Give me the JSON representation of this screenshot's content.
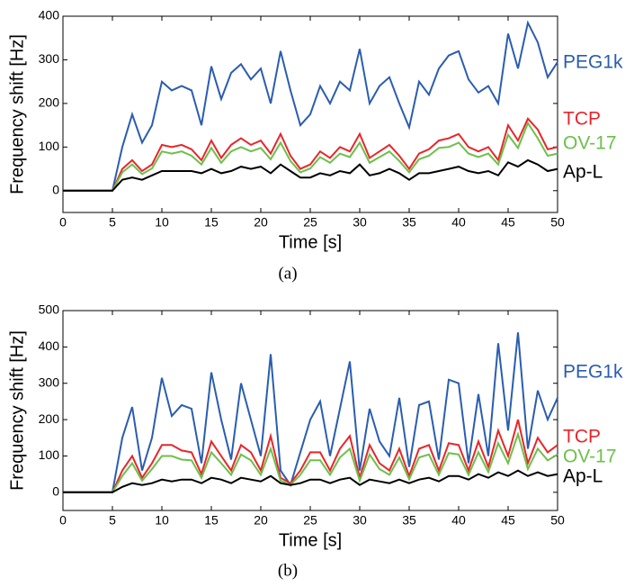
{
  "chart_data": [
    {
      "type": "line",
      "caption": "(a)",
      "xlabel": "Time [s]",
      "ylabel": "Frequency shift [Hz]",
      "x": [
        0,
        1,
        2,
        3,
        4,
        5,
        6,
        7,
        8,
        9,
        10,
        11,
        12,
        13,
        14,
        15,
        16,
        17,
        18,
        19,
        20,
        21,
        22,
        23,
        24,
        25,
        26,
        27,
        28,
        29,
        30,
        31,
        32,
        33,
        34,
        35,
        36,
        37,
        38,
        39,
        40,
        41,
        42,
        43,
        44,
        45,
        46,
        47,
        48,
        49,
        50
      ],
      "xlim": [
        0,
        50
      ],
      "xticks": [
        0,
        5,
        10,
        15,
        20,
        25,
        30,
        35,
        40,
        45,
        50
      ],
      "ylim": [
        -50,
        400
      ],
      "yticks": [
        0,
        100,
        200,
        300,
        400
      ],
      "series": [
        {
          "name": "PEG1k",
          "color": "#2a5db0",
          "values": [
            0,
            0,
            0,
            0,
            0,
            0,
            100,
            175,
            110,
            150,
            250,
            230,
            240,
            230,
            150,
            285,
            210,
            270,
            290,
            255,
            280,
            200,
            320,
            230,
            150,
            175,
            240,
            200,
            250,
            230,
            325,
            200,
            240,
            260,
            200,
            145,
            250,
            220,
            280,
            310,
            320,
            255,
            225,
            240,
            200,
            360,
            280,
            385,
            340,
            260,
            295
          ]
        },
        {
          "name": "TCP",
          "color": "#e8262a",
          "values": [
            0,
            0,
            0,
            0,
            0,
            0,
            50,
            70,
            45,
            60,
            105,
            100,
            105,
            95,
            70,
            115,
            75,
            105,
            120,
            105,
            115,
            85,
            130,
            80,
            50,
            60,
            90,
            75,
            100,
            90,
            130,
            75,
            90,
            105,
            80,
            50,
            85,
            95,
            115,
            120,
            130,
            100,
            90,
            100,
            70,
            150,
            115,
            165,
            140,
            95,
            100
          ]
        },
        {
          "name": "OV-17",
          "color": "#6cc04a",
          "values": [
            0,
            0,
            0,
            0,
            0,
            0,
            42,
            60,
            38,
            51,
            90,
            85,
            90,
            80,
            60,
            98,
            64,
            90,
            100,
            90,
            98,
            72,
            110,
            68,
            42,
            51,
            77,
            64,
            85,
            77,
            110,
            64,
            77,
            90,
            68,
            42,
            72,
            80,
            98,
            100,
            110,
            85,
            77,
            85,
            60,
            128,
            98,
            155,
            120,
            80,
            85
          ]
        },
        {
          "name": "Ap-L",
          "color": "#000000",
          "values": [
            0,
            0,
            0,
            0,
            0,
            0,
            25,
            30,
            25,
            35,
            45,
            45,
            45,
            45,
            40,
            50,
            40,
            45,
            55,
            50,
            55,
            40,
            60,
            45,
            30,
            30,
            40,
            35,
            45,
            40,
            60,
            35,
            40,
            50,
            40,
            25,
            40,
            40,
            45,
            50,
            55,
            45,
            40,
            45,
            35,
            65,
            55,
            70,
            60,
            45,
            50
          ]
        }
      ]
    },
    {
      "type": "line",
      "caption": "(b)",
      "xlabel": "Time [s]",
      "ylabel": "Frequency shift [Hz]",
      "x": [
        0,
        1,
        2,
        3,
        4,
        5,
        6,
        7,
        8,
        9,
        10,
        11,
        12,
        13,
        14,
        15,
        16,
        17,
        18,
        19,
        20,
        21,
        22,
        23,
        24,
        25,
        26,
        27,
        28,
        29,
        30,
        31,
        32,
        33,
        34,
        35,
        36,
        37,
        38,
        39,
        40,
        41,
        42,
        43,
        44,
        45,
        46,
        47,
        48,
        49,
        50
      ],
      "xlim": [
        0,
        50
      ],
      "xticks": [
        0,
        5,
        10,
        15,
        20,
        25,
        30,
        35,
        40,
        45,
        50
      ],
      "ylim": [
        -50,
        500
      ],
      "yticks": [
        0,
        100,
        200,
        300,
        400,
        500
      ],
      "series": [
        {
          "name": "PEG1k",
          "color": "#2a5db0",
          "values": [
            0,
            0,
            0,
            0,
            0,
            0,
            150,
            235,
            60,
            150,
            315,
            210,
            240,
            230,
            80,
            330,
            200,
            90,
            300,
            200,
            100,
            380,
            60,
            20,
            110,
            200,
            250,
            100,
            230,
            360,
            60,
            230,
            140,
            100,
            260,
            70,
            240,
            250,
            90,
            310,
            300,
            80,
            270,
            100,
            410,
            170,
            440,
            120,
            280,
            200,
            260
          ]
        },
        {
          "name": "TCP",
          "color": "#e8262a",
          "values": [
            0,
            0,
            0,
            0,
            0,
            0,
            60,
            100,
            40,
            80,
            130,
            130,
            115,
            110,
            50,
            140,
            100,
            60,
            130,
            110,
            60,
            155,
            40,
            25,
            60,
            110,
            110,
            60,
            120,
            155,
            40,
            130,
            80,
            60,
            120,
            45,
            120,
            130,
            60,
            135,
            130,
            60,
            140,
            70,
            170,
            100,
            200,
            80,
            150,
            110,
            130
          ]
        },
        {
          "name": "OV-17",
          "color": "#6cc04a",
          "values": [
            0,
            0,
            0,
            0,
            0,
            0,
            45,
            80,
            32,
            64,
            100,
            100,
            90,
            88,
            40,
            110,
            80,
            48,
            104,
            88,
            48,
            120,
            32,
            20,
            48,
            88,
            88,
            48,
            96,
            120,
            32,
            104,
            64,
            48,
            96,
            36,
            96,
            104,
            48,
            108,
            104,
            48,
            110,
            56,
            135,
            80,
            160,
            64,
            120,
            88,
            104
          ]
        },
        {
          "name": "Ap-L",
          "color": "#000000",
          "values": [
            0,
            0,
            0,
            0,
            0,
            0,
            15,
            25,
            20,
            25,
            35,
            30,
            35,
            35,
            25,
            40,
            35,
            25,
            40,
            35,
            30,
            45,
            25,
            20,
            25,
            35,
            35,
            25,
            35,
            40,
            20,
            35,
            30,
            25,
            35,
            25,
            35,
            40,
            30,
            45,
            45,
            35,
            50,
            40,
            55,
            45,
            60,
            45,
            55,
            45,
            50
          ]
        }
      ]
    }
  ]
}
